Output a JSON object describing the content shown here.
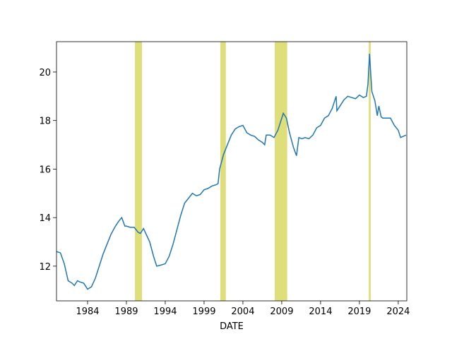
{
  "chart_data": {
    "type": "line",
    "xlabel": "DATE",
    "x": [
      1980.0,
      1980.5,
      1981.0,
      1981.5,
      1982.0,
      1982.3,
      1982.7,
      1983.0,
      1983.5,
      1984.0,
      1984.5,
      1985.0,
      1985.5,
      1986.0,
      1986.5,
      1987.0,
      1987.5,
      1988.0,
      1988.4,
      1988.8,
      1989.0,
      1989.5,
      1990.0,
      1990.5,
      1990.8,
      1991.2,
      1992.0,
      1992.5,
      1992.9,
      1993.5,
      1994.0,
      1994.5,
      1995.0,
      1995.5,
      1996.0,
      1996.5,
      1997.0,
      1997.5,
      1998.0,
      1998.5,
      1999.0,
      1999.5,
      2000.0,
      2000.5,
      2000.8,
      2001.0,
      2001.5,
      2002.0,
      2002.5,
      2003.0,
      2003.5,
      2004.0,
      2004.5,
      2005.0,
      2005.5,
      2006.0,
      2006.5,
      2006.8,
      2007.0,
      2007.5,
      2008.0,
      2008.5,
      2008.8,
      2009.2,
      2009.6,
      2010.0,
      2010.5,
      2010.9,
      2011.2,
      2011.6,
      2012.0,
      2012.5,
      2013.0,
      2013.5,
      2014.0,
      2014.5,
      2015.0,
      2015.5,
      2016.0,
      2016.1,
      2016.5,
      2017.0,
      2017.5,
      2018.0,
      2018.5,
      2019.0,
      2019.5,
      2019.9,
      2020.1,
      2020.3,
      2020.6,
      2021.0,
      2021.3,
      2021.5,
      2021.8,
      2022.0,
      2023.0,
      2023.5,
      2024.0,
      2024.3,
      2025.0
    ],
    "series": [
      {
        "color": "#1f77b4",
        "values": [
          12.6,
          12.55,
          12.1,
          11.4,
          11.3,
          11.2,
          11.4,
          11.35,
          11.3,
          11.05,
          11.15,
          11.5,
          12.0,
          12.5,
          12.9,
          13.3,
          13.6,
          13.85,
          14.0,
          13.65,
          13.65,
          13.6,
          13.6,
          13.4,
          13.35,
          13.55,
          13.0,
          12.4,
          12.0,
          12.05,
          12.1,
          12.4,
          12.9,
          13.5,
          14.1,
          14.6,
          14.8,
          15.0,
          14.9,
          14.95,
          15.15,
          15.2,
          15.3,
          15.35,
          15.4,
          16.0,
          16.6,
          17.0,
          17.4,
          17.65,
          17.75,
          17.8,
          17.5,
          17.4,
          17.35,
          17.2,
          17.1,
          17.0,
          17.4,
          17.4,
          17.3,
          17.6,
          17.9,
          18.3,
          18.1,
          17.5,
          16.9,
          16.55,
          17.3,
          17.25,
          17.3,
          17.25,
          17.4,
          17.7,
          17.8,
          18.1,
          18.2,
          18.5,
          19.0,
          18.4,
          18.6,
          18.85,
          19.0,
          18.95,
          18.9,
          19.05,
          18.95,
          19.0,
          19.5,
          20.75,
          19.2,
          18.8,
          18.2,
          18.6,
          18.15,
          18.1,
          18.1,
          17.8,
          17.6,
          17.3,
          17.4
        ]
      }
    ],
    "shaded_spans": {
      "color": "#dede7a",
      "ranges": [
        [
          1990.1,
          1991.0
        ],
        [
          2001.1,
          2001.8
        ],
        [
          2008.1,
          2009.7
        ],
        [
          2020.2,
          2020.45
        ]
      ]
    },
    "xlim": [
      1980,
      2025.1
    ],
    "xticks": [
      1984,
      1989,
      1994,
      1999,
      2004,
      2009,
      2014,
      2019,
      2024
    ],
    "ylim": [
      10.57,
      21.25
    ],
    "yticks": [
      12,
      14,
      16,
      18,
      20
    ]
  }
}
